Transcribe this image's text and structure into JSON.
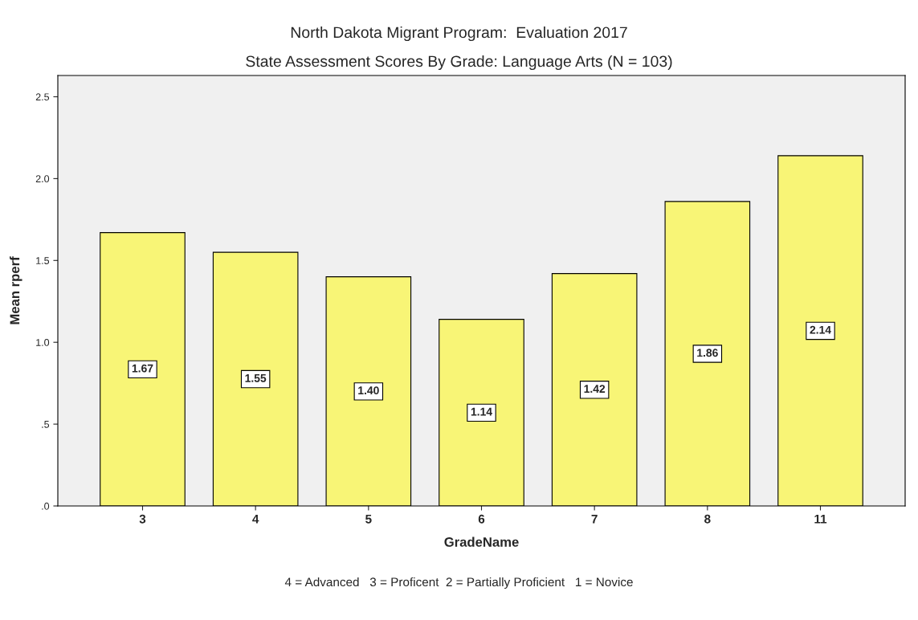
{
  "chart_data": {
    "type": "bar",
    "title": "North Dakota Migrant Program:  Evaluation 2017",
    "subtitle": "State Assessment Scores By Grade: Language Arts (N = 103)",
    "xlabel": "GradeName",
    "ylabel": "Mean rperf",
    "categories": [
      "3",
      "4",
      "5",
      "6",
      "7",
      "8",
      "11"
    ],
    "values": [
      1.67,
      1.55,
      1.4,
      1.14,
      1.42,
      1.86,
      2.14
    ],
    "value_labels": [
      "1.67",
      "1.55",
      "1.40",
      "1.14",
      "1.42",
      "1.86",
      "2.14"
    ],
    "color": "#f8f576",
    "ylim": [
      0,
      2.63
    ],
    "yticks": [
      {
        "value": 0,
        "label": ".0"
      },
      {
        "value": 0.5,
        "label": ".5"
      },
      {
        "value": 1.0,
        "label": "1.0"
      },
      {
        "value": 1.5,
        "label": "1.5"
      },
      {
        "value": 2.0,
        "label": "2.0"
      },
      {
        "value": 2.5,
        "label": "2.5"
      }
    ],
    "grid": false,
    "annotations": [
      "4 = Advanced   3 = Proficent  2 = Partially Proficient   1 = Novice"
    ]
  }
}
